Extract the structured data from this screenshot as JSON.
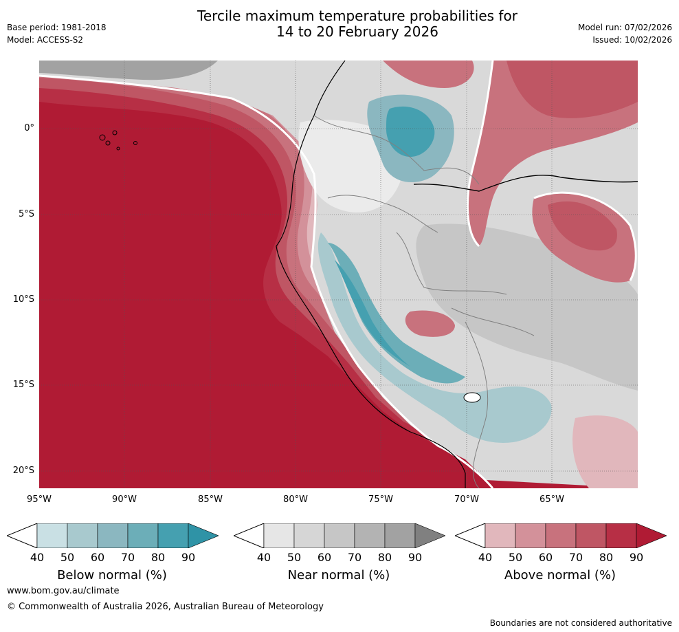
{
  "header": {
    "title_line1": "Tercile maximum temperature probabilities for",
    "title_line2": "14 to 20 February 2026",
    "base_period": "Base period: 1981-2018",
    "model": "Model: ACCESS-S2",
    "model_run": "Model run: 07/02/2026",
    "issued": "Issued: 10/02/2026"
  },
  "map": {
    "lat_ticks": [
      "0°",
      "5°S",
      "10°S",
      "15°S",
      "20°S"
    ],
    "lon_ticks": [
      "95°W",
      "90°W",
      "85°W",
      "80°W",
      "75°W",
      "70°W",
      "65°W"
    ],
    "colors": {
      "above": [
        "#e1b7bc",
        "#d3919a",
        "#c8727d",
        "#bf5664",
        "#b72f45",
        "#b01b34"
      ],
      "near": [
        "#e6e6e6",
        "#d6d6d6",
        "#c6c6c6",
        "#b3b3b3",
        "#a2a2a2",
        "#808080"
      ],
      "below": [
        "#c9e0e4",
        "#a8c9ce",
        "#8bb7c0",
        "#6caeb8",
        "#45a0b0",
        "#2f93a6"
      ]
    }
  },
  "legend": {
    "below": {
      "label": "Below normal (%)",
      "ticks": [
        "40",
        "50",
        "60",
        "70",
        "80",
        "90"
      ],
      "colors": [
        "#c9e0e4",
        "#a8c9ce",
        "#8bb7c0",
        "#6caeb8",
        "#45a0b0",
        "#2f93a6"
      ]
    },
    "near": {
      "label": "Near normal (%)",
      "ticks": [
        "40",
        "50",
        "60",
        "70",
        "80",
        "90"
      ],
      "colors": [
        "#e6e6e6",
        "#d6d6d6",
        "#c6c6c6",
        "#b3b3b3",
        "#a2a2a2",
        "#808080"
      ]
    },
    "above": {
      "label": "Above normal (%)",
      "ticks": [
        "40",
        "50",
        "60",
        "70",
        "80",
        "90"
      ],
      "colors": [
        "#e1b7bc",
        "#d3919a",
        "#c8727d",
        "#bf5664",
        "#b72f45",
        "#b01b34"
      ]
    }
  },
  "footer": {
    "link": "www.bom.gov.au/climate",
    "copyright": "© Commonwealth of Australia 2026, Australian Bureau of Meteorology",
    "note": "Boundaries are not considered authoritative"
  }
}
